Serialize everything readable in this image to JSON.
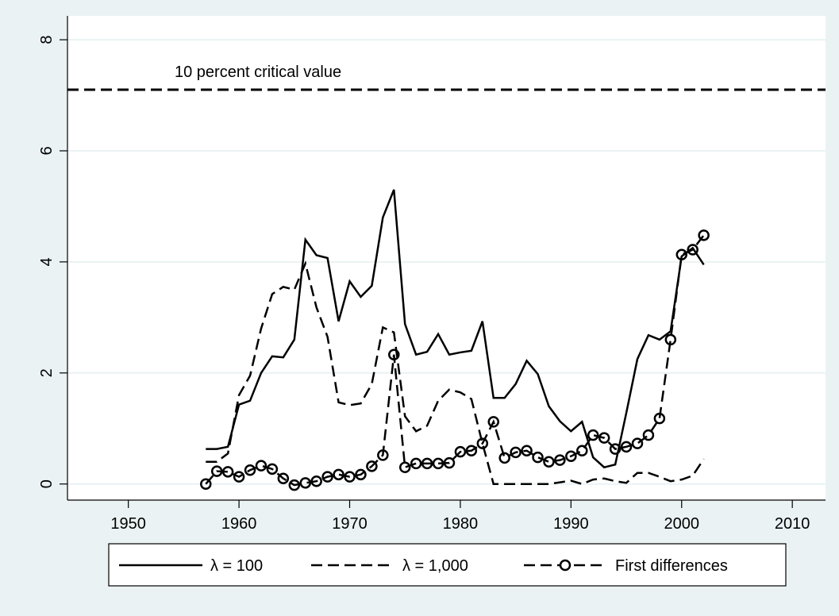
{
  "chart_data": {
    "type": "line",
    "x": [
      1957,
      1958,
      1959,
      1960,
      1961,
      1962,
      1963,
      1964,
      1965,
      1966,
      1967,
      1968,
      1969,
      1970,
      1971,
      1972,
      1973,
      1974,
      1975,
      1976,
      1977,
      1978,
      1979,
      1980,
      1981,
      1982,
      1983,
      1984,
      1985,
      1986,
      1987,
      1988,
      1989,
      1990,
      1991,
      1992,
      1993,
      1994,
      1995,
      1996,
      1997,
      1998,
      1999,
      2000,
      2001,
      2002
    ],
    "series": [
      {
        "name": "λ = 100",
        "color": "#000000",
        "style": "solid",
        "values": [
          0.63,
          0.63,
          0.67,
          1.43,
          1.5,
          2.0,
          2.3,
          2.28,
          2.6,
          4.4,
          4.12,
          4.07,
          2.93,
          3.65,
          3.37,
          3.57,
          4.8,
          5.3,
          2.88,
          2.33,
          2.38,
          2.7,
          2.33,
          2.37,
          2.4,
          2.93,
          1.55,
          1.55,
          1.8,
          2.22,
          1.98,
          1.4,
          1.13,
          0.95,
          1.12,
          0.48,
          0.3,
          0.35,
          1.28,
          2.25,
          2.68,
          2.6,
          2.75,
          4.1,
          4.25,
          3.95
        ]
      },
      {
        "name": "λ = 1,000",
        "color": "#000000",
        "style": "dash",
        "values": [
          0.4,
          0.4,
          0.55,
          1.6,
          1.95,
          2.8,
          3.42,
          3.55,
          3.5,
          3.97,
          3.18,
          2.65,
          1.47,
          1.42,
          1.45,
          1.8,
          2.82,
          2.73,
          1.22,
          0.95,
          1.05,
          1.5,
          1.7,
          1.65,
          1.53,
          0.73,
          0,
          0,
          0,
          0,
          0,
          0,
          0.03,
          0.06,
          0,
          0.08,
          0.1,
          0.05,
          0.02,
          0.2,
          0.2,
          0.13,
          0.05,
          0.08,
          0.15,
          0.45
        ]
      },
      {
        "name": "First differences",
        "color": "#000000",
        "style": "dash",
        "marker": "circle",
        "values": [
          0,
          0.23,
          0.22,
          0.13,
          0.25,
          0.33,
          0.27,
          0.1,
          -0.02,
          0.02,
          0.05,
          0.13,
          0.17,
          0.13,
          0.17,
          0.32,
          0.52,
          2.33,
          0.3,
          0.37,
          0.37,
          0.37,
          0.38,
          0.58,
          0.6,
          0.73,
          1.12,
          0.47,
          0.57,
          0.6,
          0.48,
          0.4,
          0.43,
          0.5,
          0.6,
          0.88,
          0.83,
          0.63,
          0.67,
          0.73,
          0.88,
          1.18,
          2.6,
          4.13,
          4.22,
          4.48
        ]
      }
    ],
    "critical_value": 7.1,
    "annotation": "10 percent critical value",
    "xlim": [
      1944.5,
      2013
    ],
    "xticks": [
      1950,
      1960,
      1970,
      1980,
      1990,
      2000,
      2010
    ],
    "ylim": [
      -0.29,
      8.43
    ],
    "yticks": [
      0,
      2,
      4,
      6,
      8
    ],
    "grid": true,
    "legend": "bottom"
  }
}
